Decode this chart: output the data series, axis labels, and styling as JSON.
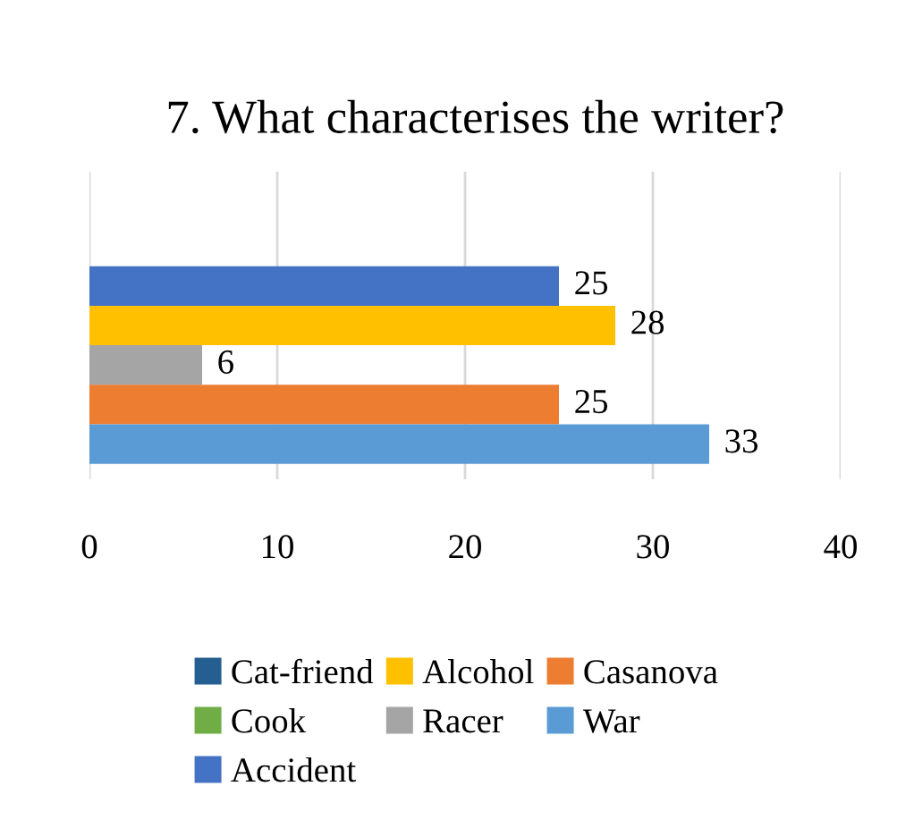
{
  "chart_data": {
    "type": "bar",
    "orientation": "horizontal",
    "title": "7. What characterises the writer?",
    "categories": [
      null
    ],
    "series": [
      {
        "name": "Cat-friend",
        "color": "#255e91",
        "values": [
          null
        ]
      },
      {
        "name": "Cook",
        "color": "#70ad47",
        "values": [
          null
        ]
      },
      {
        "name": "Accident",
        "color": "#4472c4",
        "values": [
          25
        ]
      },
      {
        "name": "Alcohol",
        "color": "#ffc000",
        "values": [
          28
        ]
      },
      {
        "name": "Racer",
        "color": "#a5a5a5",
        "values": [
          6
        ]
      },
      {
        "name": "Casanova",
        "color": "#ed7d31",
        "values": [
          25
        ]
      },
      {
        "name": "War",
        "color": "#5b9bd5",
        "values": [
          33
        ]
      }
    ],
    "xlim": [
      0,
      40
    ],
    "xticks": [
      0,
      10,
      20,
      30,
      40
    ],
    "grid": "x",
    "data_labels": true,
    "legend": "bottom"
  }
}
